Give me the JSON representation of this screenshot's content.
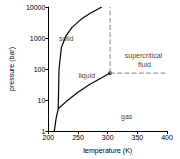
{
  "chart_data": {
    "type": "line",
    "x_label": "temperature (K)",
    "y_label": "pressure (bar)",
    "xlim": [
      200,
      400
    ],
    "xticks": [
      200,
      250,
      300,
      350,
      400
    ],
    "ylim": [
      1,
      10000
    ],
    "yticks": [
      1,
      10,
      100,
      1000,
      10000
    ],
    "log": "y",
    "grid": false,
    "series": [
      {
        "type": "line",
        "color": "#000000",
        "line_style": "solid",
        "x": [
          210,
          213,
          216.6
        ],
        "values": [
          1,
          2.5,
          5.2
        ]
      },
      {
        "type": "line",
        "color": "#000000",
        "line_style": "solid",
        "x": [
          216.6,
          218,
          222,
          230,
          240,
          255,
          270,
          290
        ],
        "values": [
          5.2,
          100,
          500,
          1200,
          2200,
          4000,
          6200,
          10000
        ]
      },
      {
        "type": "line",
        "color": "#000000",
        "line_style": "solid",
        "x": [
          216.6,
          230,
          250,
          270,
          290,
          304.1
        ],
        "values": [
          5.2,
          8.9,
          17.9,
          32,
          52,
          73.8
        ]
      },
      {
        "type": "line",
        "color": "#999999",
        "line_style": "dashed",
        "x": [
          304.1,
          304.1
        ],
        "values": [
          73.8,
          10000
        ]
      },
      {
        "type": "line",
        "color": "#999999",
        "line_style": "dashed",
        "x": [
          304.1,
          400
        ],
        "values": [
          73.8,
          73.8
        ]
      },
      {
        "type": "scatter",
        "color": "#000000",
        "marker": "circle",
        "x": [
          304.1
        ],
        "values": [
          73.8
        ]
      }
    ],
    "annotations": [
      {
        "text": "solid",
        "x": 230,
        "y": 1000
      },
      {
        "text": "liquid",
        "x": 265,
        "y": 60
      },
      {
        "text": "supercritical fluid",
        "x": 362,
        "y": 200
      },
      {
        "text": "gas",
        "x": 332,
        "y": 3
      }
    ]
  }
}
